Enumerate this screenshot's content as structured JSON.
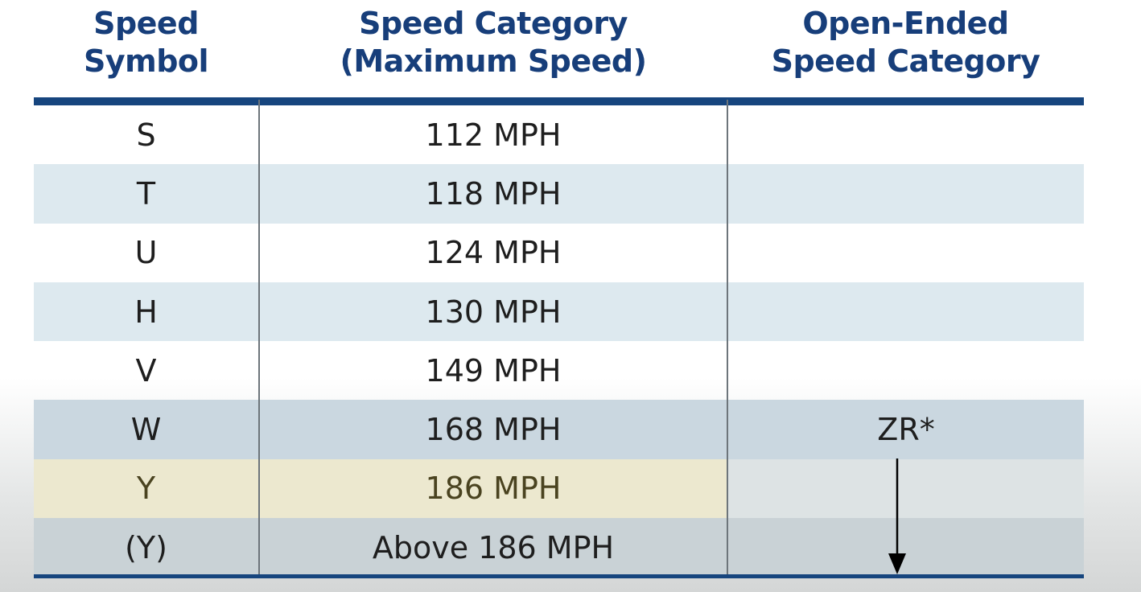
{
  "headers": {
    "col1": [
      "Speed",
      "Symbol"
    ],
    "col2": [
      "Speed Category",
      "(Maximum Speed)"
    ],
    "col3": [
      "Open-Ended",
      "Speed Category"
    ]
  },
  "rows": [
    {
      "symbol": "S",
      "speed": "112 MPH",
      "open": ""
    },
    {
      "symbol": "T",
      "speed": "118 MPH",
      "open": ""
    },
    {
      "symbol": "U",
      "speed": "124 MPH",
      "open": ""
    },
    {
      "symbol": "H",
      "speed": "130 MPH",
      "open": ""
    },
    {
      "symbol": "V",
      "speed": "149 MPH",
      "open": ""
    },
    {
      "symbol": "W",
      "speed": "168 MPH",
      "open": "ZR*"
    },
    {
      "symbol": "Y",
      "speed": "186 MPH",
      "open": ""
    },
    {
      "symbol": "(Y)",
      "speed": "Above 186 MPH",
      "open": ""
    }
  ],
  "icons": {
    "arrow": "down-arrow-icon"
  },
  "colors": {
    "header_text": "#173e7a",
    "rule": "#16457e",
    "highlight_row": "#ece8cf"
  }
}
